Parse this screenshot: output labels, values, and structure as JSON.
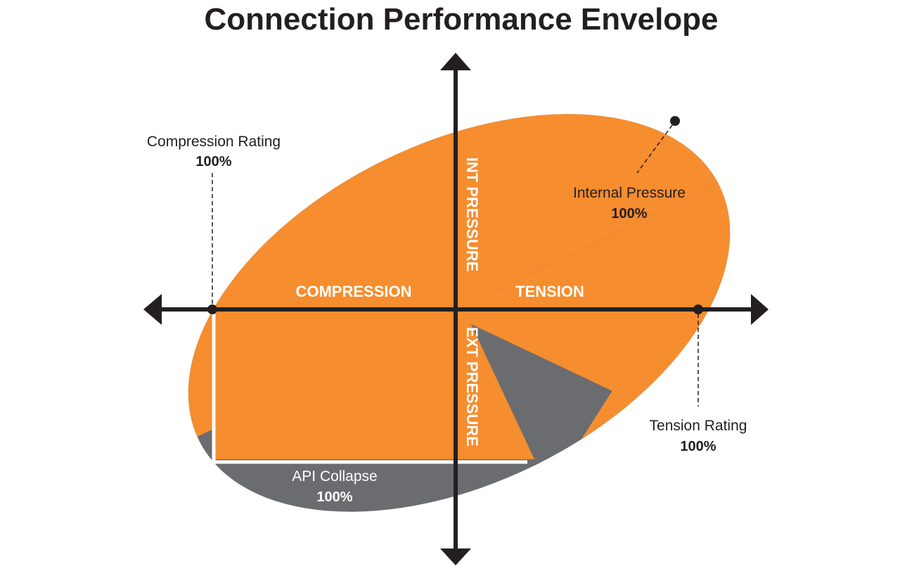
{
  "title": "Connection Performance Envelope",
  "colors": {
    "envelope": "#f68d2e",
    "collapse": "#6b6c70",
    "axis": "#231f20",
    "text_on_fill": "#ffffff"
  },
  "axes": {
    "horizontal_left": "COMPRESSION",
    "horizontal_right": "TENSION",
    "vertical_top": "INT PRESSURE",
    "vertical_bottom": "EXT PRESSURE"
  },
  "callouts": {
    "compression_rating": {
      "label": "Compression Rating",
      "value": "100%"
    },
    "internal_pressure": {
      "label": "Internal Pressure",
      "value": "100%"
    },
    "tension_rating": {
      "label": "Tension Rating",
      "value": "100%"
    },
    "api_collapse": {
      "label": "API Collapse",
      "value": "100%"
    }
  }
}
